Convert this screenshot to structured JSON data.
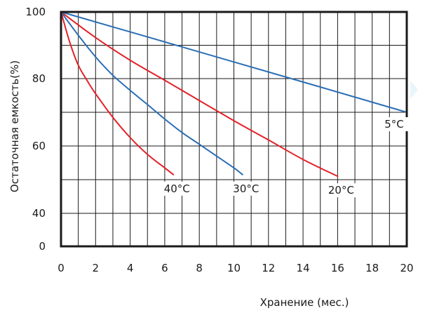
{
  "chart_data": {
    "type": "line",
    "xlabel": "Хранение (мес.)",
    "ylabel": "Остаточная емкость(%)",
    "xlim": [
      0,
      20
    ],
    "x_ticks": [
      0,
      2,
      4,
      6,
      8,
      10,
      12,
      14,
      16,
      18,
      20
    ],
    "y_ticks": [
      0,
      40,
      60,
      80,
      100
    ],
    "grid": true,
    "series": [
      {
        "name": "5°C",
        "color": "#2a6eb5",
        "points": [
          [
            0,
            100
          ],
          [
            5,
            92.5
          ],
          [
            10,
            85
          ],
          [
            15,
            77.5
          ],
          [
            20,
            70
          ]
        ]
      },
      {
        "name": "20°C",
        "color": "#e32128",
        "points": [
          [
            0,
            100
          ],
          [
            2,
            92.3
          ],
          [
            4,
            85.5
          ],
          [
            6,
            79.5
          ],
          [
            8,
            73.5
          ],
          [
            10,
            67.5
          ],
          [
            12,
            61.8
          ],
          [
            14,
            56
          ],
          [
            16,
            51
          ]
        ]
      },
      {
        "name": "30°C",
        "color": "#2a6eb5",
        "points": [
          [
            0,
            100
          ],
          [
            1,
            93
          ],
          [
            2,
            86.5
          ],
          [
            3,
            81
          ],
          [
            4,
            76.5
          ],
          [
            5,
            72.3
          ],
          [
            6,
            68
          ],
          [
            7,
            64
          ],
          [
            8,
            60.5
          ],
          [
            9,
            57
          ],
          [
            10,
            53.5
          ],
          [
            10.5,
            51.5
          ]
        ]
      },
      {
        "name": "40°C",
        "color": "#e32128",
        "points": [
          [
            0,
            100
          ],
          [
            0.5,
            91
          ],
          [
            1,
            84
          ],
          [
            1.5,
            79.5
          ],
          [
            2,
            75.5
          ],
          [
            3,
            68.5
          ],
          [
            4,
            62.5
          ],
          [
            5,
            57.5
          ],
          [
            6,
            53.5
          ],
          [
            6.5,
            51.5
          ]
        ]
      }
    ]
  }
}
